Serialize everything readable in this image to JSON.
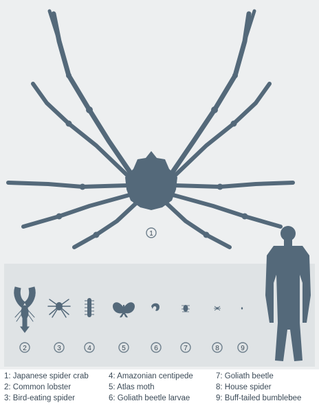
{
  "colors": {
    "silhouette": "#54697a",
    "panel": "#dfe3e5",
    "background": "#edeff0",
    "label_ring": "#6e7f8c"
  },
  "markers": {
    "crab": "1",
    "lobster": "2",
    "spider": "3",
    "centipede": "4",
    "moth": "5",
    "larva": "6",
    "beetle": "7",
    "house_spider": "8",
    "bumblebee": "9"
  },
  "legend": [
    "1: Japanese spider crab",
    "2: Common lobster",
    "3: Bird-eating spider",
    "4: Amazonian centipede",
    "5: Atlas moth",
    "6: Goliath beetle larvae",
    "7: Goliath beetle",
    "8: House spider",
    "9: Buff-tailed bumblebee"
  ]
}
